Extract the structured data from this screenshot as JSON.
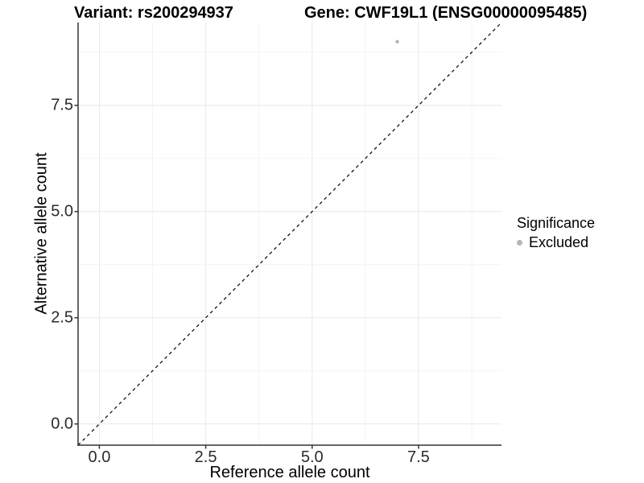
{
  "chart_data": {
    "type": "scatter",
    "title_left": "Variant: rs200294937",
    "title_right": "Gene: CWF19L1 (ENSG00000095485)",
    "xlabel": "Reference allele count",
    "ylabel": "Alternative allele count",
    "x_domain": [
      -0.5,
      9.45
    ],
    "y_domain": [
      -0.5,
      9.45
    ],
    "x_ticks": [
      {
        "value": 0.0,
        "label": "0.0"
      },
      {
        "value": 2.5,
        "label": "2.5"
      },
      {
        "value": 5.0,
        "label": "5.0"
      },
      {
        "value": 7.5,
        "label": "7.5"
      }
    ],
    "y_ticks": [
      {
        "value": 0.0,
        "label": "0.0"
      },
      {
        "value": 2.5,
        "label": "2.5"
      },
      {
        "value": 5.0,
        "label": "5.0"
      },
      {
        "value": 7.5,
        "label": "7.5"
      }
    ],
    "x_minor_ticks": [
      1.25,
      3.75,
      6.25,
      8.75
    ],
    "y_minor_ticks": [
      1.25,
      3.75,
      6.25,
      8.75
    ],
    "grid": {
      "major_color": "#e8e8e8",
      "minor_color": "#f4f4f4",
      "visible": true
    },
    "axis_color": "#333333",
    "identity_line": {
      "style": "dashed",
      "color": "#000000",
      "from": -0.5,
      "to": 9.45
    },
    "points": [
      {
        "x": 7,
        "y": 9,
        "series": "Excluded",
        "color": "#b5b5b5"
      }
    ],
    "legend": {
      "title": "Significance",
      "position": "right",
      "items": [
        {
          "label": "Excluded",
          "color": "#b5b5b5"
        }
      ]
    }
  }
}
